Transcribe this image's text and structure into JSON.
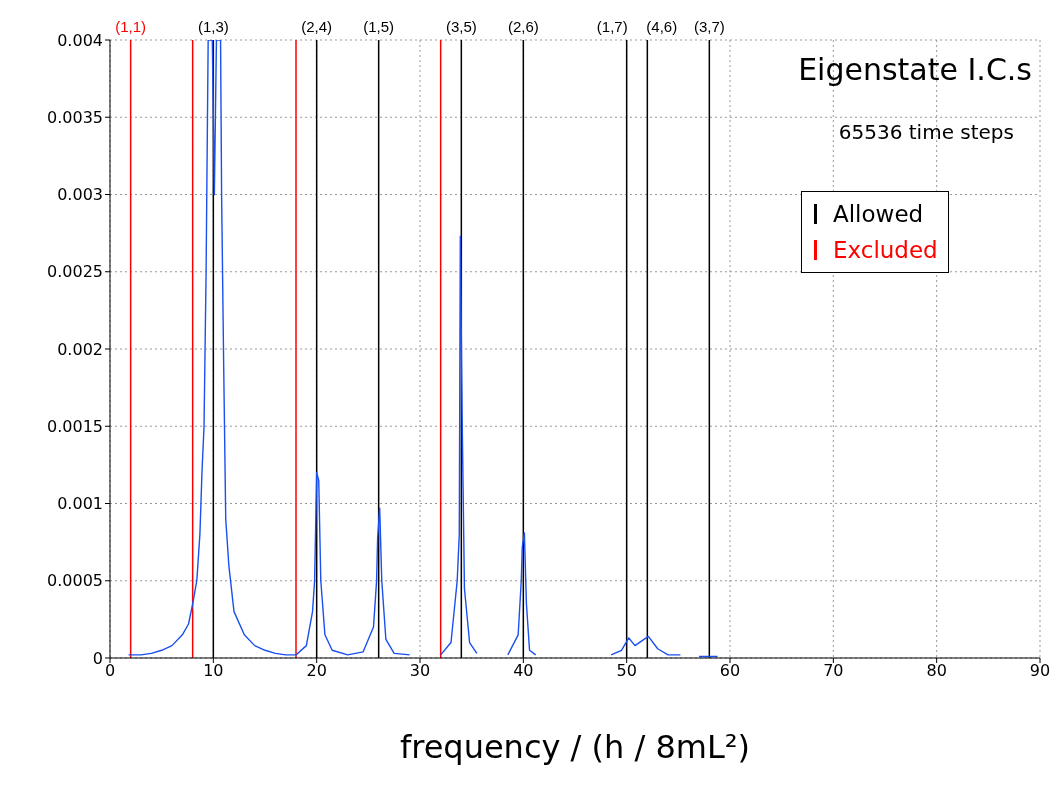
{
  "chart_data": {
    "type": "line",
    "title": "Eigenstate I.C.s",
    "subtitle": "65536 time steps",
    "xlabel": "frequency / (h / 8mL²)",
    "annotations": [
      "Allowed",
      "Excluded",
      {
        "text": "(1,1)",
        "x": 2,
        "y": 0.004
      },
      {
        "text": "(1,3)",
        "x": 10,
        "y": 0.004
      },
      {
        "text": "(2,4)",
        "x": 20,
        "y": 0.004
      },
      {
        "text": "(1,5)",
        "x": 26,
        "y": 0.004
      },
      {
        "text": "(3,5)",
        "x": 34,
        "y": 0.004
      },
      {
        "text": "(2,6)",
        "x": 40,
        "y": 0.004
      },
      {
        "text": "(1,7)",
        "x": 50,
        "y": 0.004
      },
      {
        "text": "(4,6)",
        "x": 52,
        "y": 0.004
      },
      {
        "text": "(3,7)",
        "x": 58,
        "y": 0.004
      }
    ],
    "x": [
      1.8,
      3,
      4,
      5,
      6,
      7,
      7.6,
      8,
      8.4,
      8.7,
      8.9,
      9.1,
      9.3,
      9.5,
      9.9,
      10.1,
      10.3,
      10.7,
      10.8,
      11,
      11.2,
      11.5,
      12,
      13,
      14,
      15,
      16,
      17,
      18,
      19,
      19.6,
      19.8,
      20,
      20.2,
      20.4,
      20.8,
      21.5,
      23,
      24.5,
      25.5,
      25.8,
      25.9,
      26.1,
      26.3,
      26.7,
      27.5,
      29,
      30.5,
      32,
      33,
      33.6,
      33.8,
      33.9,
      34.1,
      34.3,
      34.8,
      35.5,
      37,
      38.5,
      39.5,
      39.8,
      39.9,
      40.1,
      40.3,
      40.6,
      41.2,
      45,
      48.5,
      49.5,
      50.2,
      50.8,
      52.1,
      53,
      54,
      55.2,
      56,
      57,
      58.8
    ],
    "series": [
      {
        "color": "#1a4ff0",
        "values": [
          2e-05,
          2e-05,
          3e-05,
          5e-05,
          8e-05,
          0.00015,
          0.00022,
          0.00035,
          0.0005,
          0.0008,
          0.0012,
          0.0015,
          0.0025,
          0.004,
          0.004,
          0.003,
          0.004,
          0.004,
          0.003,
          0.0019,
          0.0009,
          0.0006,
          0.0003,
          0.00015,
          8e-05,
          5e-05,
          3e-05,
          2e-05,
          2e-05,
          8e-05,
          0.0003,
          0.0005,
          0.0012,
          0.00115,
          0.0005,
          0.00015,
          5e-05,
          2e-05,
          4e-05,
          0.0002,
          0.0005,
          0.00078,
          0.00097,
          0.0005,
          0.00012,
          3e-05,
          2e-05,
          null,
          2e-05,
          0.0001,
          0.0005,
          0.0008,
          0.00273,
          0.00145,
          0.00045,
          0.0001,
          3e-05,
          null,
          2e-05,
          0.00015,
          0.0005,
          0.00072,
          0.00081,
          0.00035,
          5e-05,
          2e-05,
          null,
          2e-05,
          5e-05,
          0.00013,
          8e-05,
          0.00014,
          6e-05,
          2e-05,
          2e-05,
          null,
          1e-05,
          1e-05
        ]
      }
    ],
    "xlim": [
      0,
      90
    ],
    "xticks": [
      0,
      10,
      20,
      30,
      40,
      50,
      60,
      70,
      80,
      90
    ],
    "ylim": [
      0,
      0.004
    ],
    "yticks": [
      0,
      0.0005,
      0.001,
      0.0015,
      0.002,
      0.0025,
      0.003,
      0.0035,
      0.004
    ],
    "grid": true,
    "marker": "none",
    "line_style": "solid",
    "ref_lines": [
      {
        "axis": "x",
        "value": 10,
        "color": "#000000"
      },
      {
        "axis": "x",
        "value": 20,
        "color": "#000000"
      },
      {
        "axis": "x",
        "value": 26,
        "color": "#000000"
      },
      {
        "axis": "x",
        "value": 34,
        "color": "#000000"
      },
      {
        "axis": "x",
        "value": 40,
        "color": "#000000"
      },
      {
        "axis": "x",
        "value": 50,
        "color": "#000000"
      },
      {
        "axis": "x",
        "value": 52,
        "color": "#000000"
      },
      {
        "axis": "x",
        "value": 58,
        "color": "#000000"
      },
      {
        "axis": "x",
        "value": 2,
        "color": "#ff0000"
      },
      {
        "axis": "x",
        "value": 8,
        "color": "#ff0000"
      },
      {
        "axis": "x",
        "value": 18,
        "color": "#ff0000"
      },
      {
        "axis": "x",
        "value": 32,
        "color": "#ff0000"
      }
    ]
  }
}
